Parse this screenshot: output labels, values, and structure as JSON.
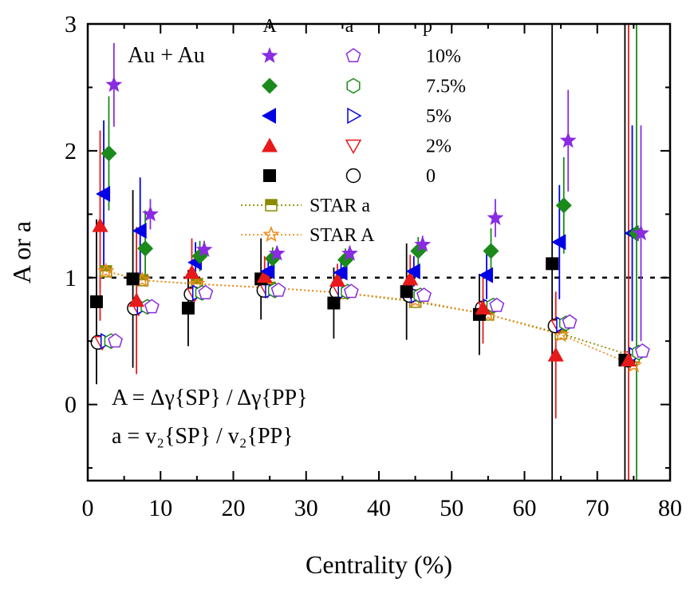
{
  "chart_data": {
    "type": "scatter",
    "xlabel": "Centrality (%)",
    "ylabel": "A or a",
    "xlim": [
      0,
      80
    ],
    "ylim": [
      -0.6,
      3.0
    ],
    "xticks": [
      "0",
      "10",
      "20",
      "30",
      "40",
      "50",
      "60",
      "70",
      "80"
    ],
    "yticks": [
      "0",
      "1",
      "2",
      "3"
    ],
    "system_label": "Au + Au",
    "formula_A": "A = Δγ{SP} / Δγ{PP}",
    "formula_a": "a  =  v₂{SP} / v₂{PP}",
    "reference_line_y": 1.0,
    "legend": {
      "header_A": "A",
      "header_a": "a",
      "header_p": "p",
      "rows": [
        {
          "p": "10%",
          "color": "#8a2be2",
          "marker_A": "star",
          "marker_a": "pentagon-open"
        },
        {
          "p": "7.5%",
          "color": "#1a8a1a",
          "marker_A": "diamond",
          "marker_a": "hexagon-open"
        },
        {
          "p": "5%",
          "color": "#0000e6",
          "marker_A": "triangle-left",
          "marker_a": "triangle-right-open"
        },
        {
          "p": "2%",
          "color": "#e61a1a",
          "marker_A": "triangle-up",
          "marker_a": "triangle-down-open"
        },
        {
          "p": "0",
          "color": "#000000",
          "marker_A": "square",
          "marker_a": "circle-open"
        }
      ],
      "star_rows": [
        {
          "label": "STAR  a",
          "color": "#8b8b00",
          "marker": "square-half"
        },
        {
          "label": "STAR  A",
          "color": "#f08c1e",
          "marker": "star-open"
        }
      ]
    },
    "series_A": [
      {
        "p": "0",
        "x": [
          1.2,
          6.2,
          13.8,
          23.8,
          33.8,
          43.8,
          53.8,
          63.8,
          73.8
        ],
        "y": [
          0.81,
          0.99,
          0.76,
          0.99,
          0.8,
          0.89,
          0.71,
          1.11,
          0.35
        ],
        "err": [
          0.65,
          0.7,
          0.3,
          0.32,
          0.28,
          0.38,
          0.32,
          3.5,
          3.5
        ]
      },
      {
        "p": "2%",
        "x": [
          1.7,
          6.7,
          14.3,
          24.3,
          34.3,
          44.3,
          54.3,
          64.3,
          74.3
        ],
        "y": [
          1.41,
          0.82,
          1.04,
          1.01,
          0.98,
          0.99,
          0.76,
          0.39,
          0.35
        ],
        "err": [
          0.75,
          0.58,
          0.27,
          0.16,
          0.13,
          0.19,
          0.28,
          0.5,
          3.5
        ]
      },
      {
        "p": "5%",
        "x": [
          2.2,
          7.2,
          14.8,
          24.8,
          34.8,
          44.8,
          54.8,
          64.8,
          74.8
        ],
        "y": [
          1.66,
          1.37,
          1.12,
          1.05,
          1.04,
          1.05,
          1.02,
          1.28,
          1.35
        ],
        "err": [
          0.58,
          0.42,
          0.16,
          0.11,
          0.1,
          0.12,
          0.19,
          0.45,
          0.85
        ]
      },
      {
        "p": "7.5%",
        "x": [
          2.9,
          7.9,
          15.4,
          25.4,
          35.4,
          45.4,
          55.4,
          65.4,
          75.4
        ],
        "y": [
          1.98,
          1.23,
          1.17,
          1.15,
          1.14,
          1.21,
          1.21,
          1.57,
          1.35
        ],
        "err": [
          0.45,
          0.3,
          0.12,
          0.09,
          0.09,
          0.11,
          0.18,
          0.38,
          3.5
        ]
      },
      {
        "p": "10%",
        "x": [
          3.6,
          8.6,
          16.0,
          26.0,
          36.0,
          46.0,
          56.0,
          66.0,
          76.0
        ],
        "y": [
          2.52,
          1.5,
          1.22,
          1.19,
          1.19,
          1.26,
          1.47,
          2.08,
          1.35
        ],
        "err": [
          0.33,
          0.12,
          0.07,
          0.06,
          0.06,
          0.07,
          0.15,
          0.4,
          0.85
        ]
      }
    ],
    "series_a": [
      {
        "p": "0",
        "x": [
          1.4,
          6.4,
          14.2,
          24.2,
          34.2,
          44.2,
          54.2,
          64.2,
          74.2
        ],
        "y": [
          0.49,
          0.76,
          0.87,
          0.9,
          0.89,
          0.86,
          0.76,
          0.62,
          0.35
        ]
      },
      {
        "p": "2%",
        "x": [
          2.0,
          7.0,
          14.7,
          24.7,
          34.7,
          44.7,
          54.7,
          64.7,
          74.7
        ],
        "y": [
          0.49,
          0.76,
          0.87,
          0.9,
          0.89,
          0.86,
          0.76,
          0.62,
          0.37
        ]
      },
      {
        "p": "5%",
        "x": [
          2.6,
          7.6,
          15.2,
          25.2,
          35.2,
          45.2,
          55.2,
          65.2,
          75.2
        ],
        "y": [
          0.5,
          0.77,
          0.88,
          0.9,
          0.89,
          0.86,
          0.77,
          0.63,
          0.39
        ]
      },
      {
        "p": "7.5%",
        "x": [
          3.2,
          8.2,
          15.7,
          25.7,
          35.7,
          45.7,
          55.7,
          65.7,
          75.7
        ],
        "y": [
          0.5,
          0.77,
          0.88,
          0.9,
          0.89,
          0.86,
          0.78,
          0.64,
          0.41
        ]
      },
      {
        "p": "10%",
        "x": [
          3.8,
          8.8,
          16.2,
          26.2,
          36.2,
          46.2,
          56.2,
          66.2,
          76.2
        ],
        "y": [
          0.5,
          0.77,
          0.88,
          0.9,
          0.89,
          0.86,
          0.78,
          0.65,
          0.42
        ]
      }
    ],
    "star_a": {
      "x": [
        2.5,
        7.5,
        15.0,
        25.0,
        35.0,
        45.0,
        55.0,
        65.0,
        75.0
      ],
      "y": [
        1.05,
        0.98,
        0.95,
        0.92,
        0.88,
        0.81,
        0.71,
        0.56,
        0.38
      ]
    },
    "star_A": {
      "x": [
        2.5,
        7.5,
        15.0,
        25.0,
        35.0,
        45.0,
        55.0,
        65.0,
        75.0
      ],
      "y": [
        1.05,
        0.98,
        0.95,
        0.92,
        0.88,
        0.82,
        0.71,
        0.55,
        0.31
      ]
    }
  }
}
